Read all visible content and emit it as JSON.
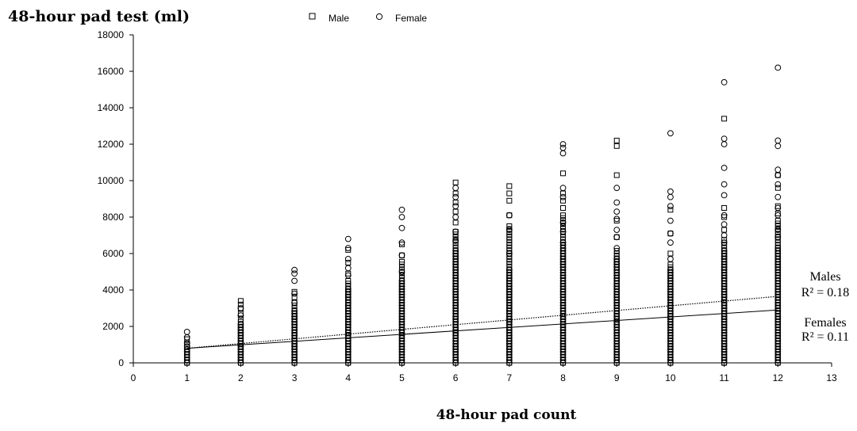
{
  "chart_data": {
    "type": "scatter",
    "title": "",
    "ylabel": "48-hour pad test (ml)",
    "xlabel": "48-hour pad count",
    "xlim": [
      0,
      13
    ],
    "ylim": [
      0,
      18000
    ],
    "x_ticks": [
      "0",
      "1",
      "2",
      "3",
      "4",
      "5",
      "6",
      "7",
      "8",
      "9",
      "10",
      "11",
      "12",
      "13"
    ],
    "y_ticks": [
      "0",
      "2000",
      "4000",
      "6000",
      "8000",
      "10000",
      "12000",
      "14000",
      "16000",
      "18000"
    ],
    "grid": false,
    "legend": {
      "placement": "top-center",
      "entries": [
        {
          "name": "Male",
          "marker": "square"
        },
        {
          "name": "Female",
          "marker": "circle"
        }
      ]
    },
    "series": [
      {
        "name": "Male",
        "marker": "square",
        "dense_range": [
          [
            1,
            0,
            900
          ],
          [
            2,
            0,
            2500
          ],
          [
            3,
            0,
            3300
          ],
          [
            4,
            0,
            4600
          ],
          [
            5,
            0,
            5600
          ],
          [
            6,
            0,
            7300
          ],
          [
            7,
            0,
            7600
          ],
          [
            8,
            0,
            8200
          ],
          [
            9,
            0,
            6200
          ],
          [
            10,
            0,
            5400
          ],
          [
            11,
            0,
            6800
          ],
          [
            12,
            0,
            7800
          ]
        ],
        "outliers": [
          [
            1,
            1000
          ],
          [
            1,
            1300
          ],
          [
            2,
            2700
          ],
          [
            2,
            3000
          ],
          [
            2,
            3200
          ],
          [
            2,
            3400
          ],
          [
            3,
            3600
          ],
          [
            3,
            3900
          ],
          [
            4,
            4900
          ],
          [
            4,
            5500
          ],
          [
            4,
            6200
          ],
          [
            5,
            5900
          ],
          [
            5,
            6500
          ],
          [
            6,
            7700
          ],
          [
            6,
            8300
          ],
          [
            6,
            8800
          ],
          [
            6,
            9300
          ],
          [
            6,
            9900
          ],
          [
            7,
            8100
          ],
          [
            7,
            8900
          ],
          [
            7,
            9300
          ],
          [
            7,
            9700
          ],
          [
            8,
            8500
          ],
          [
            8,
            8900
          ],
          [
            8,
            9300
          ],
          [
            8,
            10400
          ],
          [
            9,
            6900
          ],
          [
            9,
            7800
          ],
          [
            9,
            10300
          ],
          [
            9,
            11900
          ],
          [
            9,
            12200
          ],
          [
            10,
            6000
          ],
          [
            10,
            7100
          ],
          [
            10,
            8400
          ],
          [
            11,
            7300
          ],
          [
            11,
            8000
          ],
          [
            11,
            8500
          ],
          [
            11,
            13400
          ],
          [
            12,
            8200
          ],
          [
            12,
            8600
          ],
          [
            12,
            9600
          ],
          [
            12,
            10300
          ]
        ]
      },
      {
        "name": "Female",
        "marker": "circle",
        "dense_range": [
          [
            1,
            0,
            900
          ],
          [
            2,
            0,
            2200
          ],
          [
            3,
            0,
            2900
          ],
          [
            4,
            0,
            4100
          ],
          [
            5,
            0,
            4600
          ],
          [
            6,
            0,
            6200
          ],
          [
            7,
            0,
            5200
          ],
          [
            8,
            0,
            6600
          ],
          [
            9,
            0,
            5700
          ],
          [
            10,
            0,
            5200
          ],
          [
            11,
            0,
            6200
          ],
          [
            12,
            0,
            6400
          ]
        ],
        "outliers": [
          [
            1,
            1100
          ],
          [
            1,
            1400
          ],
          [
            1,
            1700
          ],
          [
            2,
            2600
          ],
          [
            2,
            3000
          ],
          [
            3,
            3300
          ],
          [
            3,
            3800
          ],
          [
            3,
            4500
          ],
          [
            3,
            4900
          ],
          [
            3,
            5100
          ],
          [
            4,
            4800
          ],
          [
            4,
            5200
          ],
          [
            4,
            5700
          ],
          [
            4,
            6300
          ],
          [
            4,
            6800
          ],
          [
            5,
            5000
          ],
          [
            5,
            5900
          ],
          [
            5,
            6600
          ],
          [
            5,
            7400
          ],
          [
            5,
            8000
          ],
          [
            5,
            8400
          ],
          [
            6,
            6700
          ],
          [
            6,
            7200
          ],
          [
            6,
            8000
          ],
          [
            6,
            8600
          ],
          [
            6,
            9100
          ],
          [
            6,
            9600
          ],
          [
            7,
            6000
          ],
          [
            7,
            7300
          ],
          [
            7,
            8100
          ],
          [
            8,
            7200
          ],
          [
            8,
            7700
          ],
          [
            8,
            9100
          ],
          [
            8,
            9600
          ],
          [
            8,
            11500
          ],
          [
            8,
            11800
          ],
          [
            8,
            12000
          ],
          [
            9,
            6300
          ],
          [
            9,
            6900
          ],
          [
            9,
            7300
          ],
          [
            9,
            7900
          ],
          [
            9,
            8300
          ],
          [
            9,
            8800
          ],
          [
            9,
            9600
          ],
          [
            10,
            5700
          ],
          [
            10,
            6600
          ],
          [
            10,
            7100
          ],
          [
            10,
            7800
          ],
          [
            10,
            8600
          ],
          [
            10,
            9100
          ],
          [
            10,
            9400
          ],
          [
            10,
            12600
          ],
          [
            11,
            6600
          ],
          [
            11,
            7000
          ],
          [
            11,
            7600
          ],
          [
            11,
            8100
          ],
          [
            11,
            9200
          ],
          [
            11,
            9800
          ],
          [
            11,
            10700
          ],
          [
            11,
            12000
          ],
          [
            11,
            12300
          ],
          [
            11,
            15400
          ],
          [
            12,
            6900
          ],
          [
            12,
            7300
          ],
          [
            12,
            8100
          ],
          [
            12,
            8500
          ],
          [
            12,
            9100
          ],
          [
            12,
            9800
          ],
          [
            12,
            10300
          ],
          [
            12,
            10600
          ],
          [
            12,
            11900
          ],
          [
            12,
            12200
          ],
          [
            12,
            16200
          ]
        ]
      }
    ],
    "trendlines": [
      {
        "name": "Males",
        "style": "dotted",
        "x": [
          1,
          12
        ],
        "y": [
          800,
          3650
        ],
        "r2_label": "R² = 0.18"
      },
      {
        "name": "Females",
        "style": "solid",
        "x": [
          1,
          12
        ],
        "y": [
          800,
          2900
        ],
        "r2_label": "R² = 0.11"
      }
    ]
  }
}
